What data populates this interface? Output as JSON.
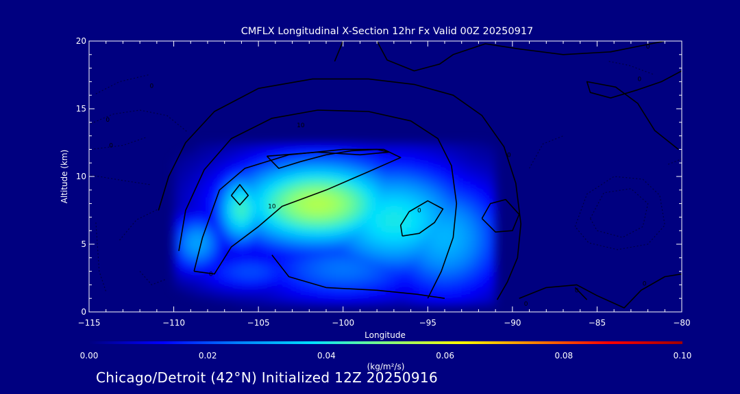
{
  "chart_data": {
    "type": "heatmap",
    "title": "CMFLX Longitudinal X-Section 12hr  Fx Valid 00Z 20250917",
    "xlabel": "Longitude",
    "ylabel": "Altitude (km)",
    "xlim": [
      -115,
      -80
    ],
    "ylim": [
      0,
      20
    ],
    "x_ticks": [
      -115,
      -110,
      -105,
      -100,
      -95,
      -90,
      -85,
      -80
    ],
    "x_tick_labels": [
      "−115",
      "−110",
      "−105",
      "−100",
      "−95",
      "−90",
      "−85",
      "−80"
    ],
    "y_ticks": [
      0,
      5,
      10,
      15,
      20
    ],
    "y_tick_labels": [
      "0",
      "5",
      "10",
      "15",
      "20"
    ],
    "colorbar": {
      "min": 0.0,
      "max": 0.1,
      "ticks": [
        "0.00",
        "0.02",
        "0.04",
        "0.06",
        "0.08",
        "0.10"
      ],
      "units": "(kg/m²/s)",
      "stops": [
        "#000080",
        "#0000ff",
        "#0080ff",
        "#00e0ff",
        "#80ff80",
        "#ffff00",
        "#ff8000",
        "#ff0000",
        "#a00000"
      ]
    },
    "field_blobs": [
      {
        "lon": -101.5,
        "alt": 8.0,
        "lon_spread": 3.8,
        "alt_spread": 2.4,
        "value": 0.055
      },
      {
        "lon": -97.0,
        "alt": 6.8,
        "lon_spread": 3.4,
        "alt_spread": 3.0,
        "value": 0.04
      },
      {
        "lon": -94.0,
        "alt": 5.5,
        "lon_spread": 2.6,
        "alt_spread": 3.2,
        "value": 0.032
      },
      {
        "lon": -106.0,
        "alt": 7.6,
        "lon_spread": 1.1,
        "alt_spread": 2.0,
        "value": 0.044
      },
      {
        "lon": -108.6,
        "alt": 5.1,
        "lon_spread": 1.2,
        "alt_spread": 1.6,
        "value": 0.03
      },
      {
        "lon": -100.0,
        "alt": 3.2,
        "lon_spread": 3.8,
        "alt_spread": 1.8,
        "value": 0.024
      },
      {
        "lon": -101.0,
        "alt": 11.0,
        "lon_spread": 4.0,
        "alt_spread": 0.9,
        "value": 0.022
      },
      {
        "lon": -105.5,
        "alt": 3.0,
        "lon_spread": 2.4,
        "alt_spread": 1.1,
        "value": 0.02
      }
    ],
    "field_extent": {
      "lon_min": -110.0,
      "lon_max": -91.0,
      "alt_min": 0.5,
      "alt_max": 12.5
    },
    "contour_labels": [
      {
        "text": "0",
        "lon": -111.3,
        "alt": 16.7
      },
      {
        "text": "10",
        "lon": -102.5,
        "alt": 13.8
      },
      {
        "text": "10",
        "lon": -104.2,
        "alt": 7.8
      },
      {
        "text": "0",
        "lon": -107.8,
        "alt": 2.8
      },
      {
        "text": "0",
        "lon": -95.5,
        "alt": 7.5
      },
      {
        "text": "0",
        "lon": -90.2,
        "alt": 11.6
      },
      {
        "text": "0",
        "lon": -82.0,
        "alt": 19.6
      },
      {
        "text": "0",
        "lon": -82.5,
        "alt": 17.2
      },
      {
        "text": "0",
        "lon": -86.2,
        "alt": 1.6
      },
      {
        "text": "0",
        "lon": -82.2,
        "alt": 2.1
      },
      {
        "text": "0",
        "lon": -89.2,
        "alt": 0.6
      },
      {
        "text": "0",
        "lon": -113.9,
        "alt": 14.2
      },
      {
        "text": "0",
        "lon": -113.7,
        "alt": 12.3
      }
    ],
    "contours_solid": [
      [
        [
          -110.9,
          7.5
        ],
        [
          -110.3,
          10.0
        ],
        [
          -109.3,
          12.5
        ],
        [
          -107.6,
          14.8
        ],
        [
          -105.0,
          16.5
        ],
        [
          -101.8,
          17.2
        ],
        [
          -98.5,
          17.2
        ],
        [
          -95.8,
          16.8
        ],
        [
          -93.5,
          16.0
        ],
        [
          -91.8,
          14.5
        ],
        [
          -90.5,
          12.2
        ],
        [
          -89.8,
          9.5
        ],
        [
          -89.5,
          6.5
        ],
        [
          -89.7,
          4.0
        ],
        [
          -90.3,
          2.2
        ],
        [
          -90.9,
          0.9
        ]
      ],
      [
        [
          -109.7,
          4.5
        ],
        [
          -109.3,
          7.5
        ],
        [
          -108.2,
          10.5
        ],
        [
          -106.6,
          12.8
        ],
        [
          -104.2,
          14.3
        ],
        [
          -101.5,
          14.9
        ],
        [
          -98.5,
          14.8
        ],
        [
          -96.0,
          14.1
        ],
        [
          -94.4,
          12.8
        ],
        [
          -93.6,
          10.8
        ],
        [
          -93.3,
          8.0
        ],
        [
          -93.5,
          5.5
        ],
        [
          -94.2,
          3.0
        ],
        [
          -95.0,
          1.0
        ]
      ],
      [
        [
          -108.8,
          3.0
        ],
        [
          -108.3,
          5.5
        ],
        [
          -107.3,
          9.0
        ],
        [
          -105.8,
          10.6
        ],
        [
          -103.2,
          11.6
        ],
        [
          -100.0,
          12.0
        ],
        [
          -97.6,
          12.0
        ],
        [
          -96.6,
          11.4
        ],
        [
          -98.6,
          10.3
        ],
        [
          -101.0,
          9.0
        ],
        [
          -103.6,
          7.8
        ],
        [
          -105.0,
          6.3
        ],
        [
          -106.6,
          4.8
        ],
        [
          -107.6,
          2.8
        ],
        [
          -108.8,
          3.0
        ]
      ],
      [
        [
          -104.5,
          11.5
        ],
        [
          -103.8,
          10.6
        ],
        [
          -102.5,
          11.1
        ],
        [
          -101.0,
          11.6
        ],
        [
          -99.5,
          11.9
        ],
        [
          -98.0,
          12.0
        ],
        [
          -97.3,
          11.8
        ],
        [
          -99.0,
          11.6
        ],
        [
          -101.5,
          11.8
        ],
        [
          -104.5,
          11.5
        ]
      ],
      [
        [
          -106.6,
          8.6
        ],
        [
          -106.1,
          9.4
        ],
        [
          -105.6,
          8.6
        ],
        [
          -106.1,
          7.9
        ],
        [
          -106.6,
          8.6
        ]
      ],
      [
        [
          -96.5,
          5.6
        ],
        [
          -95.5,
          5.8
        ],
        [
          -94.6,
          6.6
        ],
        [
          -94.1,
          7.6
        ],
        [
          -95.0,
          8.2
        ],
        [
          -96.1,
          7.4
        ],
        [
          -96.6,
          6.4
        ],
        [
          -96.5,
          5.6
        ]
      ],
      [
        [
          -91.8,
          6.9
        ],
        [
          -91.0,
          5.9
        ],
        [
          -90.0,
          6.0
        ],
        [
          -89.6,
          7.2
        ],
        [
          -90.4,
          8.3
        ],
        [
          -91.3,
          8.0
        ],
        [
          -91.8,
          6.9
        ]
      ],
      [
        [
          -104.2,
          4.2
        ],
        [
          -103.2,
          2.6
        ],
        [
          -101.0,
          1.8
        ],
        [
          -98.0,
          1.6
        ],
        [
          -95.6,
          1.3
        ],
        [
          -94.0,
          1.0
        ]
      ],
      [
        [
          -100.5,
          18.5
        ],
        [
          -100.0,
          20.0
        ]
      ],
      [
        [
          -98.0,
          20.0
        ],
        [
          -97.4,
          18.6
        ],
        [
          -95.8,
          17.8
        ],
        [
          -94.3,
          18.3
        ],
        [
          -93.5,
          19.0
        ],
        [
          -91.6,
          19.8
        ],
        [
          -89.5,
          19.4
        ],
        [
          -87.0,
          19.0
        ],
        [
          -84.2,
          19.2
        ],
        [
          -82.6,
          19.6
        ],
        [
          -81.0,
          20.0
        ]
      ],
      [
        [
          -80.0,
          17.8
        ],
        [
          -81.2,
          17.0
        ],
        [
          -82.6,
          16.4
        ],
        [
          -84.2,
          15.8
        ],
        [
          -85.4,
          16.2
        ],
        [
          -85.6,
          17.0
        ],
        [
          -83.9,
          16.6
        ],
        [
          -82.6,
          15.4
        ],
        [
          -81.6,
          13.4
        ],
        [
          -80.2,
          12.0
        ]
      ],
      [
        [
          -89.6,
          1.0
        ],
        [
          -88.0,
          1.8
        ],
        [
          -86.2,
          2.0
        ],
        [
          -85.0,
          1.2
        ],
        [
          -83.4,
          0.3
        ],
        [
          -82.4,
          1.6
        ],
        [
          -81.0,
          2.6
        ],
        [
          -80.0,
          2.8
        ]
      ],
      [
        [
          -85.6,
          0.9
        ],
        [
          -86.3,
          1.8
        ]
      ]
    ],
    "contours_dashed": [
      [
        [
          -114.9,
          13.9
        ],
        [
          -113.6,
          14.6
        ],
        [
          -112.0,
          14.9
        ],
        [
          -110.4,
          14.5
        ],
        [
          -109.2,
          13.3
        ]
      ],
      [
        [
          -114.9,
          12.0
        ],
        [
          -113.0,
          12.3
        ],
        [
          -111.6,
          12.9
        ]
      ],
      [
        [
          -114.6,
          16.1
        ],
        [
          -113.2,
          17.0
        ],
        [
          -111.5,
          17.5
        ]
      ],
      [
        [
          -114.9,
          10.1
        ],
        [
          -113.0,
          9.7
        ],
        [
          -111.4,
          9.4
        ]
      ],
      [
        [
          -113.2,
          5.3
        ],
        [
          -112.2,
          6.8
        ],
        [
          -110.9,
          7.6
        ]
      ],
      [
        [
          -112.0,
          3.0
        ],
        [
          -111.3,
          2.0
        ],
        [
          -110.5,
          2.4
        ]
      ],
      [
        [
          -114.6,
          6.6
        ],
        [
          -114.4,
          3.0
        ],
        [
          -114.0,
          1.5
        ]
      ],
      [
        [
          -86.3,
          6.3
        ],
        [
          -85.6,
          8.7
        ],
        [
          -84.0,
          10.0
        ],
        [
          -82.3,
          9.8
        ],
        [
          -81.3,
          8.6
        ],
        [
          -81.0,
          6.4
        ],
        [
          -82.0,
          5.0
        ],
        [
          -83.8,
          4.6
        ],
        [
          -85.5,
          5.1
        ],
        [
          -86.3,
          6.3
        ]
      ],
      [
        [
          -85.4,
          6.9
        ],
        [
          -84.6,
          8.8
        ],
        [
          -83.0,
          9.1
        ],
        [
          -82.0,
          8.0
        ],
        [
          -82.3,
          6.3
        ],
        [
          -83.5,
          5.5
        ],
        [
          -85.0,
          6.0
        ],
        [
          -85.4,
          6.9
        ]
      ],
      [
        [
          -89.0,
          10.6
        ],
        [
          -88.2,
          12.4
        ],
        [
          -87.0,
          13.0
        ]
      ],
      [
        [
          -84.3,
          18.5
        ],
        [
          -83.1,
          18.2
        ],
        [
          -81.6,
          17.5
        ]
      ],
      [
        [
          -80.8,
          10.9
        ],
        [
          -80.0,
          11.3
        ]
      ]
    ],
    "location": "Chicago/Detroit (42°N) Initialized 12Z 20250916"
  }
}
